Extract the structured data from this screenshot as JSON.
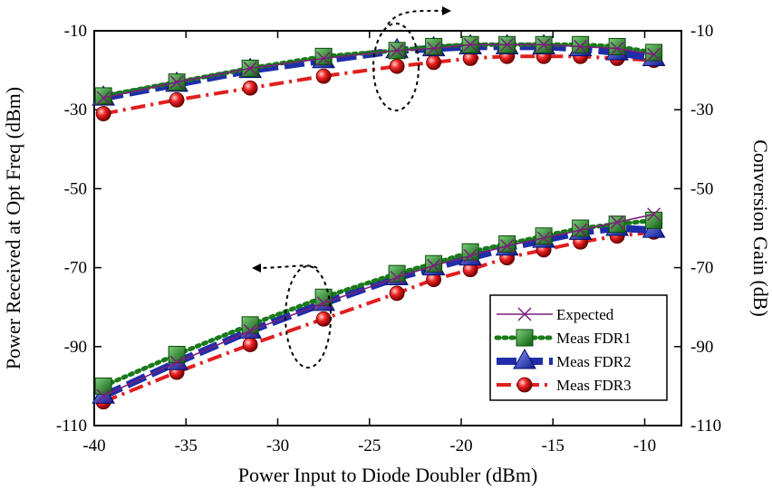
{
  "chart_data": {
    "type": "line",
    "xlabel": "Power Input to Diode Doubler (dBm)",
    "ylabel_left": "Power Received at Opt Freq (dBm)",
    "ylabel_right": "Conversion Gain (dB)",
    "xlim": [
      -40,
      -8
    ],
    "ylim": [
      -110,
      -10
    ],
    "xticks": [
      -40,
      -35,
      -30,
      -25,
      -20,
      -15,
      -10
    ],
    "yticks": [
      -110,
      -90,
      -70,
      -50,
      -30,
      -10
    ],
    "x": [
      -39.5,
      -35.5,
      -31.5,
      -27.5,
      -23.5,
      -21.5,
      -19.5,
      -17.5,
      -15.5,
      -13.5,
      -11.5,
      -9.5
    ],
    "series": [
      {
        "name": "Expected",
        "group": "power",
        "color": "#7a1f7a",
        "marker": "x",
        "values": [
          -102.5,
          -94,
          -86,
          -79,
          -72.5,
          -69.5,
          -67,
          -64.5,
          -62.5,
          -60.5,
          -58.5,
          -56.5
        ]
      },
      {
        "name": "Meas FDR1",
        "group": "power",
        "color": "#1a7a1a",
        "marker": "square",
        "values": [
          -100,
          -92,
          -84.5,
          -77.5,
          -71.5,
          -69,
          -66,
          -64,
          -62,
          -60,
          -59,
          -58
        ]
      },
      {
        "name": "Meas FDR2",
        "group": "power",
        "color": "#1f2ea8",
        "marker": "triangle",
        "values": [
          -102.5,
          -94,
          -86,
          -79,
          -72.5,
          -70,
          -67.5,
          -65,
          -63,
          -61,
          -60,
          -60.5
        ]
      },
      {
        "name": "Meas FDR3",
        "group": "power",
        "color": "#e01f1f",
        "marker": "sphere",
        "values": [
          -104,
          -96.5,
          -89.5,
          -83,
          -76.5,
          -73,
          -70.5,
          -67.5,
          -65.5,
          -63.5,
          -62,
          -61
        ]
      },
      {
        "name": "Expected",
        "group": "gain",
        "color": "#7a1f7a",
        "marker": "x",
        "values": [
          -27,
          -23,
          -19.5,
          -17,
          -15,
          -14.5,
          -13.5,
          -13.5,
          -13.5,
          -14,
          -14.5,
          -16
        ]
      },
      {
        "name": "Meas FDR1",
        "group": "gain",
        "color": "#1a7a1a",
        "marker": "square",
        "values": [
          -26.5,
          -23,
          -19.5,
          -16.5,
          -15,
          -14,
          -13.5,
          -13.5,
          -13.5,
          -13.5,
          -14,
          -15.5
        ]
      },
      {
        "name": "Meas FDR2",
        "group": "gain",
        "color": "#1f2ea8",
        "marker": "triangle",
        "values": [
          -27,
          -23.5,
          -20,
          -17.5,
          -15,
          -14.5,
          -14,
          -14,
          -14,
          -14.5,
          -15.5,
          -17
        ]
      },
      {
        "name": "Meas FDR3",
        "group": "gain",
        "color": "#e01f1f",
        "marker": "sphere",
        "values": [
          -31,
          -27.5,
          -24.5,
          -21.5,
          -19,
          -18,
          -17,
          -16.5,
          -16.5,
          -16.5,
          -17,
          -17.5
        ]
      }
    ],
    "legend": {
      "placement": "bottom-right",
      "entries": [
        "Expected",
        "Meas FDR1",
        "Meas FDR2",
        "Meas FDR3"
      ]
    },
    "annotations": [
      {
        "kind": "ellipse-arrow",
        "target_axis": "right",
        "arrow_direction": "right"
      },
      {
        "kind": "ellipse-arrow",
        "target_axis": "left",
        "arrow_direction": "left"
      }
    ],
    "grid": false
  }
}
